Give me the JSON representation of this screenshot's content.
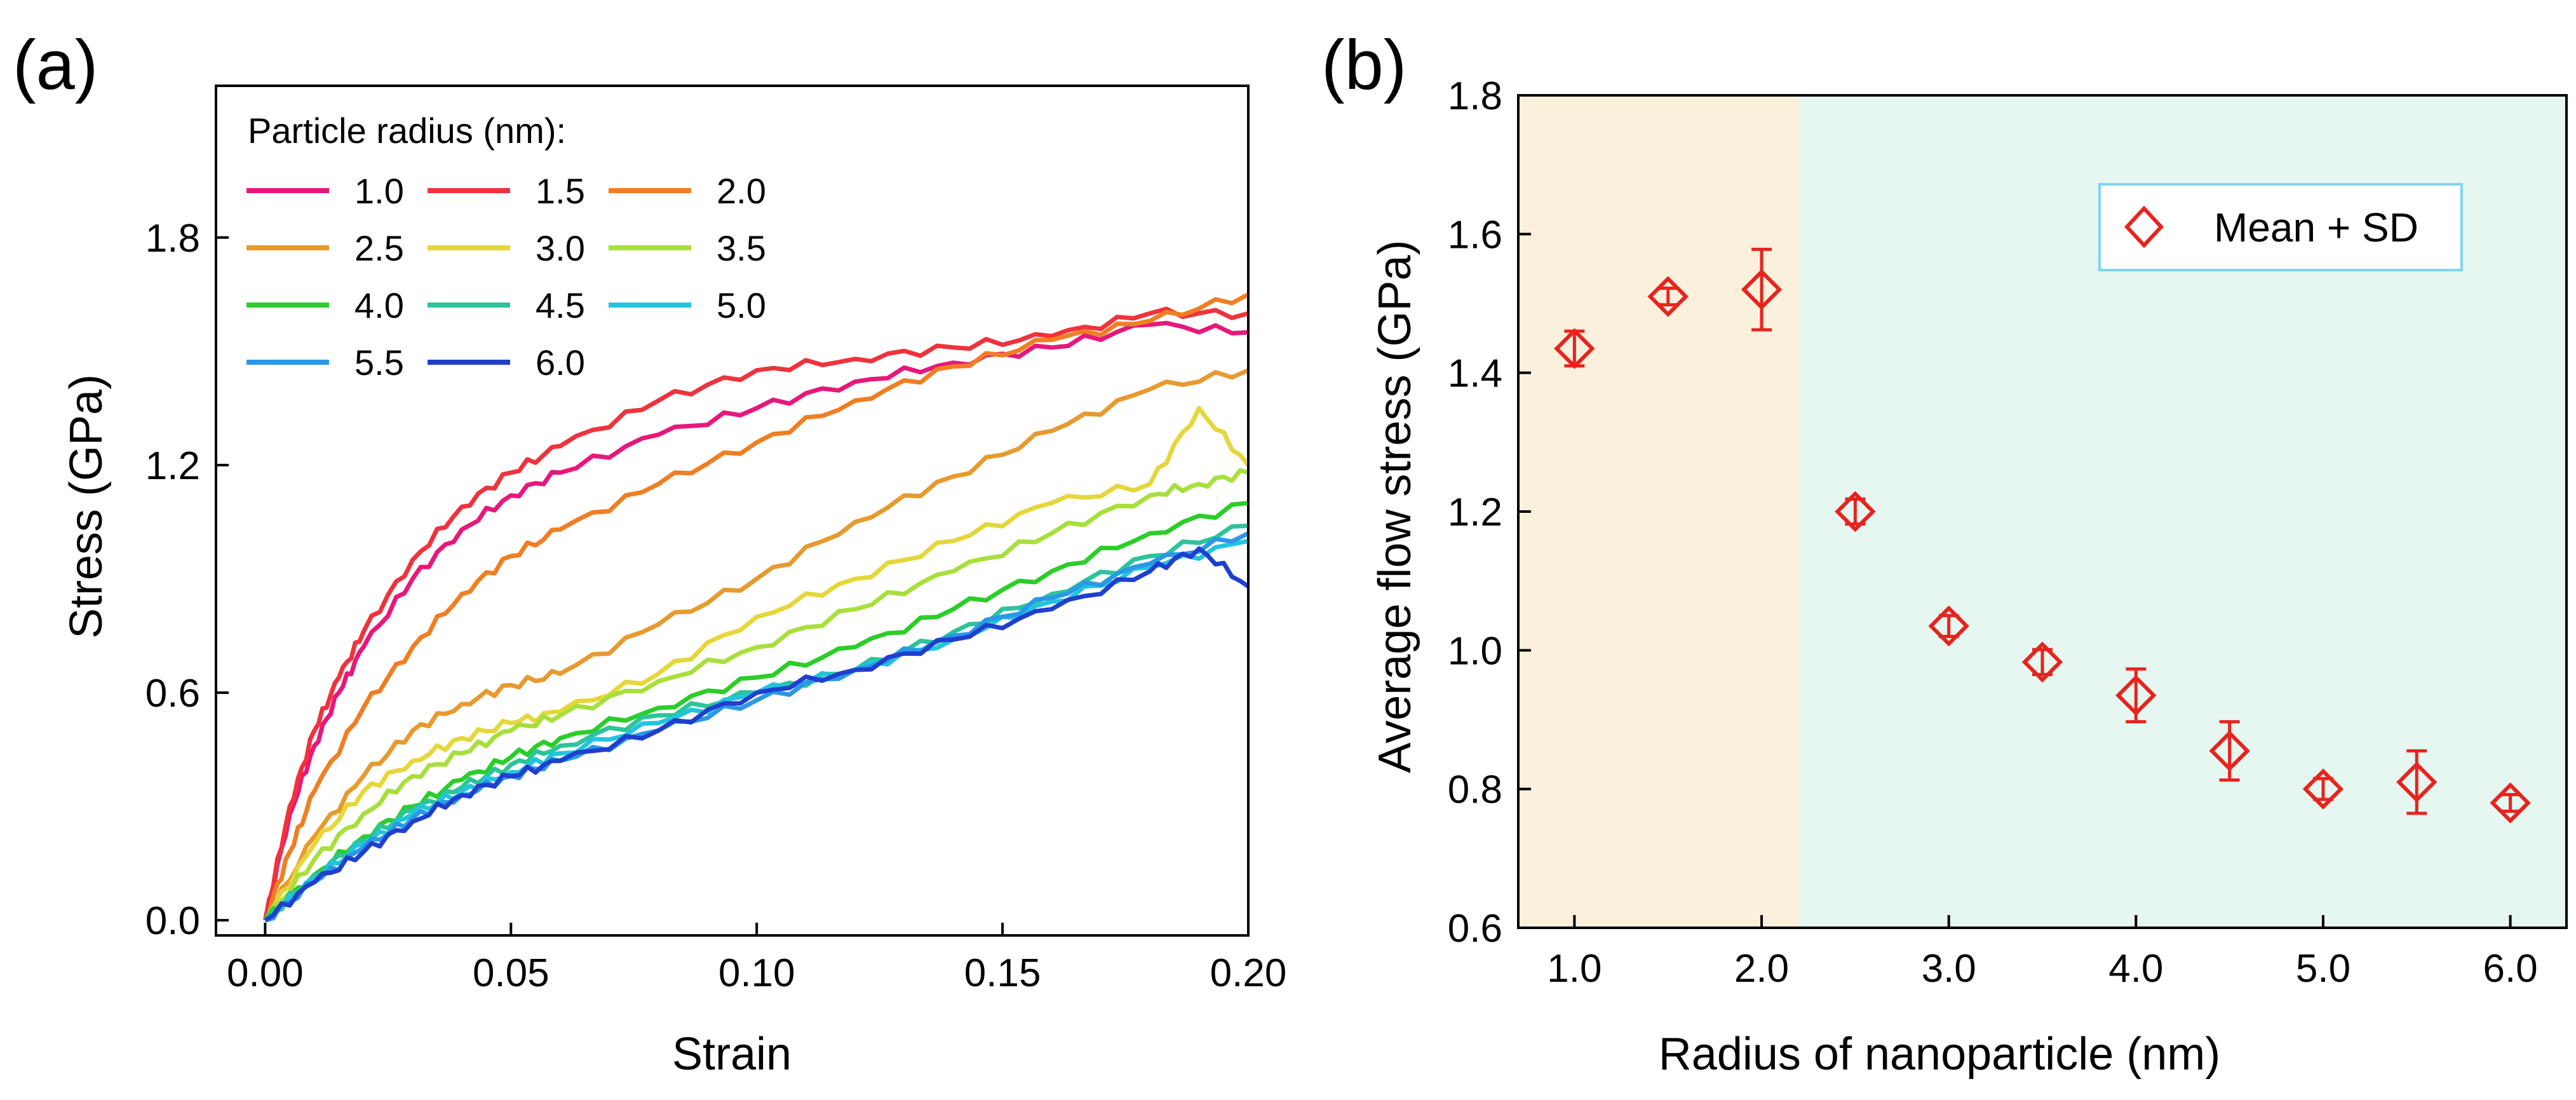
{
  "figure": {
    "panels": [
      "(a)",
      "(b)"
    ]
  },
  "chart_data": [
    {
      "panel": "(a)",
      "type": "line",
      "title": "",
      "xlabel": "Strain",
      "ylabel": "Stress (GPa)",
      "xlim": [
        -0.01,
        0.2
      ],
      "ylim": [
        -0.04,
        2.2
      ],
      "xticks": [
        0.0,
        0.05,
        0.1,
        0.15,
        0.2
      ],
      "xtick_labels": [
        "0.00",
        "0.05",
        "0.10",
        "0.15",
        "0.20"
      ],
      "yticks": [
        0.0,
        0.6,
        1.2,
        1.8
      ],
      "ytick_labels": [
        "0.0",
        "0.6",
        "1.2",
        "1.8"
      ],
      "grid": false,
      "legend": {
        "title": "Particle radius (nm):",
        "placement": "top-left",
        "columns": 3
      },
      "series": [
        {
          "name": "1.0",
          "color": "#e8187a",
          "x": [
            0,
            0.005,
            0.01,
            0.015,
            0.02,
            0.03,
            0.04,
            0.05,
            0.06,
            0.08,
            0.1,
            0.12,
            0.14,
            0.16,
            0.18,
            0.2
          ],
          "y": [
            0,
            0.28,
            0.46,
            0.6,
            0.72,
            0.9,
            1.03,
            1.12,
            1.18,
            1.28,
            1.35,
            1.42,
            1.47,
            1.51,
            1.57,
            1.55
          ]
        },
        {
          "name": "1.5",
          "color": "#f0323c",
          "x": [
            0,
            0.005,
            0.01,
            0.015,
            0.02,
            0.03,
            0.04,
            0.05,
            0.06,
            0.08,
            0.1,
            0.12,
            0.14,
            0.16,
            0.18,
            0.2
          ],
          "y": [
            0,
            0.3,
            0.5,
            0.64,
            0.76,
            0.95,
            1.09,
            1.18,
            1.25,
            1.37,
            1.45,
            1.48,
            1.51,
            1.54,
            1.6,
            1.6
          ]
        },
        {
          "name": "2.0",
          "color": "#f07e22",
          "x": [
            0,
            0.005,
            0.01,
            0.02,
            0.03,
            0.04,
            0.05,
            0.06,
            0.08,
            0.1,
            0.12,
            0.14,
            0.16,
            0.18,
            0.2
          ],
          "y": [
            0,
            0.18,
            0.34,
            0.56,
            0.72,
            0.86,
            0.96,
            1.03,
            1.15,
            1.26,
            1.37,
            1.46,
            1.53,
            1.58,
            1.65
          ]
        },
        {
          "name": "2.5",
          "color": "#e79a2e",
          "x": [
            0,
            0.01,
            0.02,
            0.03,
            0.04,
            0.05,
            0.06,
            0.08,
            0.1,
            0.12,
            0.14,
            0.16,
            0.18,
            0.2
          ],
          "y": [
            0,
            0.22,
            0.38,
            0.5,
            0.57,
            0.62,
            0.65,
            0.78,
            0.9,
            1.05,
            1.17,
            1.29,
            1.4,
            1.45
          ]
        },
        {
          "name": "3.0",
          "color": "#e5d73a",
          "x": [
            0,
            0.01,
            0.02,
            0.03,
            0.04,
            0.05,
            0.06,
            0.08,
            0.1,
            0.12,
            0.14,
            0.16,
            0.18,
            0.19,
            0.2
          ],
          "y": [
            0,
            0.2,
            0.34,
            0.42,
            0.48,
            0.52,
            0.55,
            0.65,
            0.8,
            0.9,
            1.0,
            1.1,
            1.15,
            1.35,
            1.2
          ]
        },
        {
          "name": "3.5",
          "color": "#a8df3c",
          "x": [
            0,
            0.01,
            0.02,
            0.03,
            0.04,
            0.05,
            0.06,
            0.08,
            0.1,
            0.12,
            0.14,
            0.16,
            0.18,
            0.19,
            0.2
          ],
          "y": [
            0,
            0.16,
            0.28,
            0.38,
            0.44,
            0.5,
            0.54,
            0.63,
            0.72,
            0.82,
            0.92,
            1.02,
            1.12,
            1.15,
            1.18
          ]
        },
        {
          "name": "4.0",
          "color": "#2ccd2a",
          "x": [
            0,
            0.01,
            0.02,
            0.03,
            0.04,
            0.05,
            0.06,
            0.08,
            0.1,
            0.12,
            0.14,
            0.16,
            0.18,
            0.2
          ],
          "y": [
            0,
            0.12,
            0.22,
            0.3,
            0.37,
            0.43,
            0.48,
            0.56,
            0.64,
            0.72,
            0.82,
            0.92,
            1.02,
            1.1
          ]
        },
        {
          "name": "4.5",
          "color": "#2cc49a",
          "x": [
            0,
            0.01,
            0.02,
            0.03,
            0.04,
            0.05,
            0.06,
            0.08,
            0.1,
            0.12,
            0.14,
            0.16,
            0.18,
            0.2
          ],
          "y": [
            0,
            0.12,
            0.21,
            0.29,
            0.35,
            0.41,
            0.46,
            0.54,
            0.6,
            0.66,
            0.76,
            0.86,
            0.96,
            1.04
          ]
        },
        {
          "name": "5.0",
          "color": "#22c4dd",
          "x": [
            0,
            0.01,
            0.02,
            0.03,
            0.04,
            0.05,
            0.06,
            0.08,
            0.1,
            0.12,
            0.14,
            0.16,
            0.18,
            0.2
          ],
          "y": [
            0,
            0.11,
            0.2,
            0.28,
            0.34,
            0.39,
            0.44,
            0.52,
            0.6,
            0.66,
            0.74,
            0.84,
            0.93,
            1.0
          ]
        },
        {
          "name": "5.5",
          "color": "#2a98e6",
          "x": [
            0,
            0.01,
            0.02,
            0.03,
            0.04,
            0.05,
            0.06,
            0.08,
            0.1,
            0.12,
            0.14,
            0.16,
            0.18,
            0.2
          ],
          "y": [
            0,
            0.1,
            0.19,
            0.27,
            0.33,
            0.38,
            0.42,
            0.5,
            0.58,
            0.66,
            0.75,
            0.85,
            0.94,
            1.02
          ]
        },
        {
          "name": "6.0",
          "color": "#1f3fcf",
          "x": [
            0,
            0.01,
            0.02,
            0.03,
            0.04,
            0.05,
            0.06,
            0.08,
            0.1,
            0.12,
            0.14,
            0.16,
            0.18,
            0.19,
            0.2
          ],
          "y": [
            0,
            0.1,
            0.18,
            0.26,
            0.33,
            0.38,
            0.42,
            0.5,
            0.6,
            0.66,
            0.74,
            0.82,
            0.92,
            0.98,
            0.88
          ]
        }
      ]
    },
    {
      "panel": "(b)",
      "type": "scatter",
      "title": "",
      "xlabel": "Radius of nanoparticle (nm)",
      "ylabel": "Average flow stress (GPa)",
      "xlim": [
        0.7,
        6.3
      ],
      "ylim": [
        0.6,
        1.8
      ],
      "xticks": [
        1,
        2,
        3,
        4,
        5,
        6
      ],
      "xtick_labels": [
        "1.0",
        "2.0",
        "3.0",
        "4.0",
        "5.0",
        "6.0"
      ],
      "yticks": [
        0.6,
        0.8,
        1.0,
        1.2,
        1.4,
        1.6,
        1.8
      ],
      "ytick_labels": [
        "0.6",
        "0.8",
        "1.0",
        "1.2",
        "1.4",
        "1.6",
        "1.8"
      ],
      "grid": false,
      "legend": {
        "placement": "top-right"
      },
      "regions": [
        {
          "x_range": [
            0.7,
            2.2
          ],
          "color": "#fbf0dc"
        },
        {
          "x_range": [
            2.2,
            6.3
          ],
          "color": "#e6f6f1"
        }
      ],
      "marker_color": "#e8231d",
      "series": [
        {
          "name": "Mean + SD",
          "x": [
            1.0,
            1.5,
            2.0,
            2.5,
            3.0,
            3.5,
            4.0,
            4.5,
            5.0,
            5.5,
            6.0
          ],
          "y": [
            1.435,
            1.51,
            1.52,
            1.2,
            1.035,
            0.983,
            0.935,
            0.855,
            0.8,
            0.81,
            0.78
          ],
          "sd": [
            0.025,
            0.012,
            0.058,
            0.018,
            0.015,
            0.018,
            0.038,
            0.042,
            0.015,
            0.045,
            0.012
          ]
        }
      ]
    }
  ]
}
